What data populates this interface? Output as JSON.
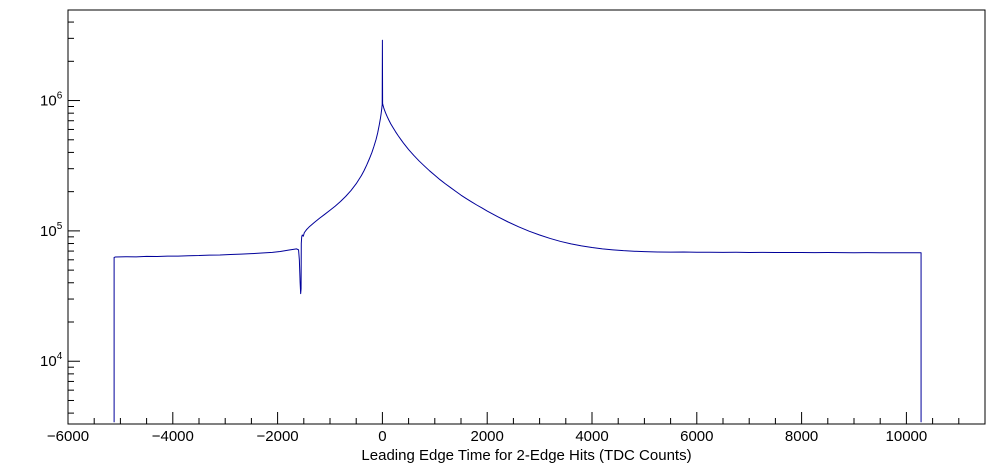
{
  "chart_data": {
    "type": "line",
    "title": "",
    "xlabel": "Leading Edge Time for 2-Edge Hits (TDC Counts)",
    "ylabel": "",
    "x_axis": {
      "min": -6000,
      "max": 11500,
      "major_tick_step": 2000,
      "minor_tick_step": 500,
      "major_ticks": [
        -6000,
        -4000,
        -2000,
        0,
        2000,
        4000,
        6000,
        8000,
        10000
      ],
      "major_tick_labels": [
        "−6000",
        "−4000",
        "−2000",
        "0",
        "2000",
        "4000",
        "6000",
        "8000",
        "10000"
      ]
    },
    "y_axis": {
      "scale": "log",
      "min": 3300,
      "max": 4950000,
      "major_ticks": [
        10000,
        100000,
        1000000
      ],
      "major_tick_labels": [
        {
          "base": "10",
          "exp": "4"
        },
        {
          "base": "10",
          "exp": "5"
        },
        {
          "base": "10",
          "exp": "6"
        }
      ]
    },
    "legend": "none",
    "grid": false,
    "line_color": "#00009a",
    "frame_color": "#000000",
    "background_color": "#ffffff",
    "points": [
      [
        -5120,
        3400
      ],
      [
        -5120,
        62500
      ],
      [
        -5100,
        63000
      ],
      [
        -4900,
        63400
      ],
      [
        -4700,
        63200
      ],
      [
        -4500,
        63800
      ],
      [
        -4300,
        63600
      ],
      [
        -4100,
        64100
      ],
      [
        -3900,
        64000
      ],
      [
        -3700,
        64500
      ],
      [
        -3500,
        64700
      ],
      [
        -3300,
        65200
      ],
      [
        -3100,
        65300
      ],
      [
        -2900,
        65900
      ],
      [
        -2700,
        66300
      ],
      [
        -2500,
        66900
      ],
      [
        -2300,
        67600
      ],
      [
        -2100,
        68400
      ],
      [
        -1950,
        69500
      ],
      [
        -1850,
        70600
      ],
      [
        -1780,
        71400
      ],
      [
        -1700,
        72200
      ],
      [
        -1640,
        72800
      ],
      [
        -1600,
        71500
      ],
      [
        -1585,
        60000
      ],
      [
        -1570,
        40000
      ],
      [
        -1560,
        33000
      ],
      [
        -1552,
        36000
      ],
      [
        -1548,
        80000
      ],
      [
        -1540,
        90000
      ],
      [
        -1530,
        93000
      ],
      [
        -1510,
        91000
      ],
      [
        -1490,
        97000
      ],
      [
        -1450,
        102000
      ],
      [
        -1400,
        107000
      ],
      [
        -1300,
        116000
      ],
      [
        -1200,
        125000
      ],
      [
        -1100,
        134000
      ],
      [
        -1000,
        144000
      ],
      [
        -900,
        155000
      ],
      [
        -800,
        168000
      ],
      [
        -700,
        184000
      ],
      [
        -600,
        204000
      ],
      [
        -500,
        230000
      ],
      [
        -400,
        266000
      ],
      [
        -350,
        290000
      ],
      [
        -300,
        320000
      ],
      [
        -250,
        356000
      ],
      [
        -200,
        400000
      ],
      [
        -160,
        447000
      ],
      [
        -120,
        505000
      ],
      [
        -90,
        565000
      ],
      [
        -60,
        650000
      ],
      [
        -40,
        720000
      ],
      [
        -25,
        790000
      ],
      [
        -12,
        870000
      ],
      [
        -4,
        930000
      ],
      [
        0,
        2900000
      ],
      [
        4,
        950000
      ],
      [
        12,
        920000
      ],
      [
        25,
        880000
      ],
      [
        40,
        845000
      ],
      [
        60,
        805000
      ],
      [
        90,
        755000
      ],
      [
        120,
        712000
      ],
      [
        160,
        662000
      ],
      [
        200,
        622000
      ],
      [
        250,
        577000
      ],
      [
        300,
        538000
      ],
      [
        350,
        504000
      ],
      [
        400,
        473000
      ],
      [
        500,
        421000
      ],
      [
        600,
        379000
      ],
      [
        700,
        344000
      ],
      [
        800,
        315000
      ],
      [
        900,
        289000
      ],
      [
        1000,
        267000
      ],
      [
        1100,
        247000
      ],
      [
        1200,
        230000
      ],
      [
        1300,
        215000
      ],
      [
        1400,
        201000
      ],
      [
        1500,
        188000
      ],
      [
        1600,
        177000
      ],
      [
        1700,
        167000
      ],
      [
        1800,
        158000
      ],
      [
        1900,
        150000
      ],
      [
        2000,
        142000
      ],
      [
        2200,
        128500
      ],
      [
        2400,
        117000
      ],
      [
        2600,
        107500
      ],
      [
        2800,
        99500
      ],
      [
        3000,
        93000
      ],
      [
        3200,
        87500
      ],
      [
        3400,
        83000
      ],
      [
        3600,
        79500
      ],
      [
        3800,
        76700
      ],
      [
        4000,
        74500
      ],
      [
        4200,
        72800
      ],
      [
        4400,
        71500
      ],
      [
        4600,
        70500
      ],
      [
        4800,
        69800
      ],
      [
        5000,
        69300
      ],
      [
        5250,
        68900
      ],
      [
        5500,
        68700
      ],
      [
        5750,
        68800
      ],
      [
        6000,
        68500
      ],
      [
        6250,
        68600
      ],
      [
        6500,
        68400
      ],
      [
        6750,
        68500
      ],
      [
        7000,
        68300
      ],
      [
        7250,
        68400
      ],
      [
        7500,
        68300
      ],
      [
        7750,
        68200
      ],
      [
        8000,
        68300
      ],
      [
        8250,
        68100
      ],
      [
        8500,
        68200
      ],
      [
        8750,
        68100
      ],
      [
        9000,
        68000
      ],
      [
        9250,
        68100
      ],
      [
        9500,
        68000
      ],
      [
        9750,
        67900
      ],
      [
        10000,
        68000
      ],
      [
        10250,
        67900
      ],
      [
        10280,
        67900
      ],
      [
        10280,
        3400
      ]
    ]
  },
  "layout_labels": {
    "x_axis_title": "Leading Edge Time for 2-Edge Hits (TDC Counts)"
  }
}
